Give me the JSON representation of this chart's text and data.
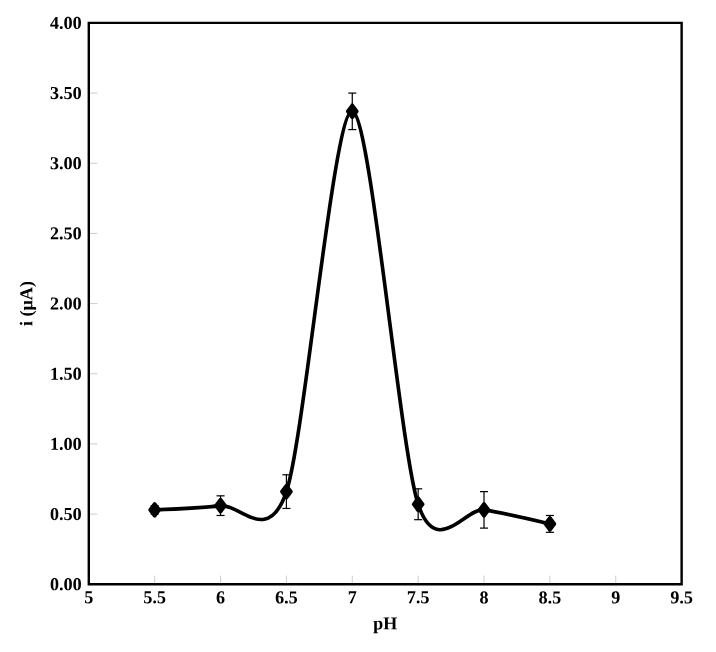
{
  "chart_data": {
    "type": "line",
    "xlabel": "pH",
    "ylabel": "i (μA)",
    "x": [
      5.5,
      6,
      6.5,
      7,
      7.5,
      8,
      8.5
    ],
    "values": [
      0.53,
      0.56,
      0.66,
      3.37,
      0.57,
      0.53,
      0.43
    ],
    "errors": [
      0.03,
      0.07,
      0.12,
      0.13,
      0.11,
      0.13,
      0.06
    ],
    "color": "#000000",
    "marker": "diamond",
    "line_style": "solid",
    "grid": false,
    "xlim": [
      5,
      9.5
    ],
    "xticks": [
      5,
      5.5,
      6,
      6.5,
      7,
      7.5,
      8,
      8.5,
      9,
      9.5
    ],
    "ylim": [
      0,
      4
    ],
    "yticks": [
      {
        "value": 0,
        "label": "0.00"
      },
      {
        "value": 0.5,
        "label": "0.50"
      },
      {
        "value": 1,
        "label": "1.00"
      },
      {
        "value": 1.5,
        "label": "1.50"
      },
      {
        "value": 2,
        "label": "2.00"
      },
      {
        "value": 2.5,
        "label": "2.50"
      },
      {
        "value": 3,
        "label": "3.00"
      },
      {
        "value": 3.5,
        "label": "3.50"
      },
      {
        "value": 4,
        "label": "4.00"
      }
    ]
  }
}
